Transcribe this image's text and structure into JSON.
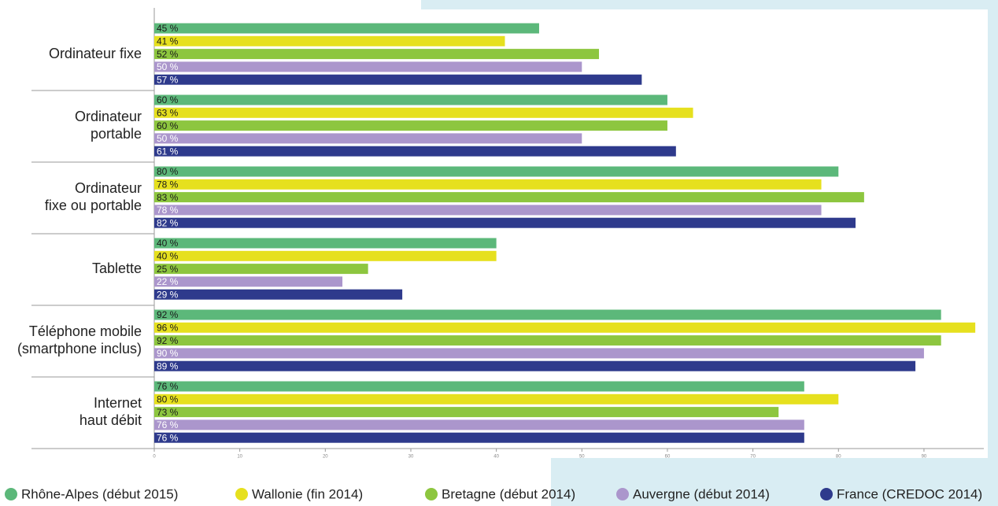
{
  "chart_data": {
    "type": "hbar",
    "categories": [
      [
        "Ordinateur fixe"
      ],
      [
        "Ordinateur",
        "portable"
      ],
      [
        "Ordinateur",
        "fixe ou portable"
      ],
      [
        "Tablette"
      ],
      [
        "Téléphone mobile",
        "(smartphone inclus)"
      ],
      [
        "Internet",
        "haut débit"
      ]
    ],
    "series": [
      {
        "name": "Rhône-Alpes (début 2015)",
        "color": "#5cb87a",
        "label_color": "#1a1a1a",
        "values": [
          45,
          60,
          80,
          40,
          92,
          76
        ],
        "value_labels": [
          "45 %",
          "60 %",
          "80 %",
          "40 %",
          "92 %",
          "76 %"
        ]
      },
      {
        "name": "Wallonie (fin 2014)",
        "color": "#e6e01e",
        "label_color": "#1a1a1a",
        "values": [
          41,
          63,
          78,
          40,
          96,
          80
        ],
        "value_labels": [
          "41 %",
          "63 %",
          "78 %",
          "40 %",
          "96 %",
          "80 %"
        ]
      },
      {
        "name": "Bretagne (début 2014)",
        "color": "#8dc63f",
        "label_color": "#1a1a1a",
        "values": [
          52,
          60,
          83,
          25,
          92,
          73
        ],
        "value_labels": [
          "52 %",
          "60 %",
          "83 %",
          "25 %",
          "92 %",
          "73 %"
        ]
      },
      {
        "name": "Auvergne (début 2014)",
        "color": "#ab96cc",
        "label_color": "#ffffff",
        "values": [
          50,
          50,
          78,
          22,
          90,
          76
        ],
        "value_labels": [
          "50 %",
          "50 %",
          "78 %",
          "22 %",
          "90 %",
          "76 %"
        ]
      },
      {
        "name": "France (CREDOC 2014)",
        "color": "#2e3a8c",
        "label_color": "#ffffff",
        "values": [
          57,
          61,
          82,
          29,
          89,
          76
        ],
        "value_labels": [
          "57 %",
          "61 %",
          "82 %",
          "29 %",
          "89 %",
          "76 %"
        ]
      }
    ],
    "xlim": [
      0,
      97
    ],
    "xticks": [
      0,
      10,
      20,
      30,
      40,
      50,
      60,
      70,
      80,
      90
    ]
  }
}
